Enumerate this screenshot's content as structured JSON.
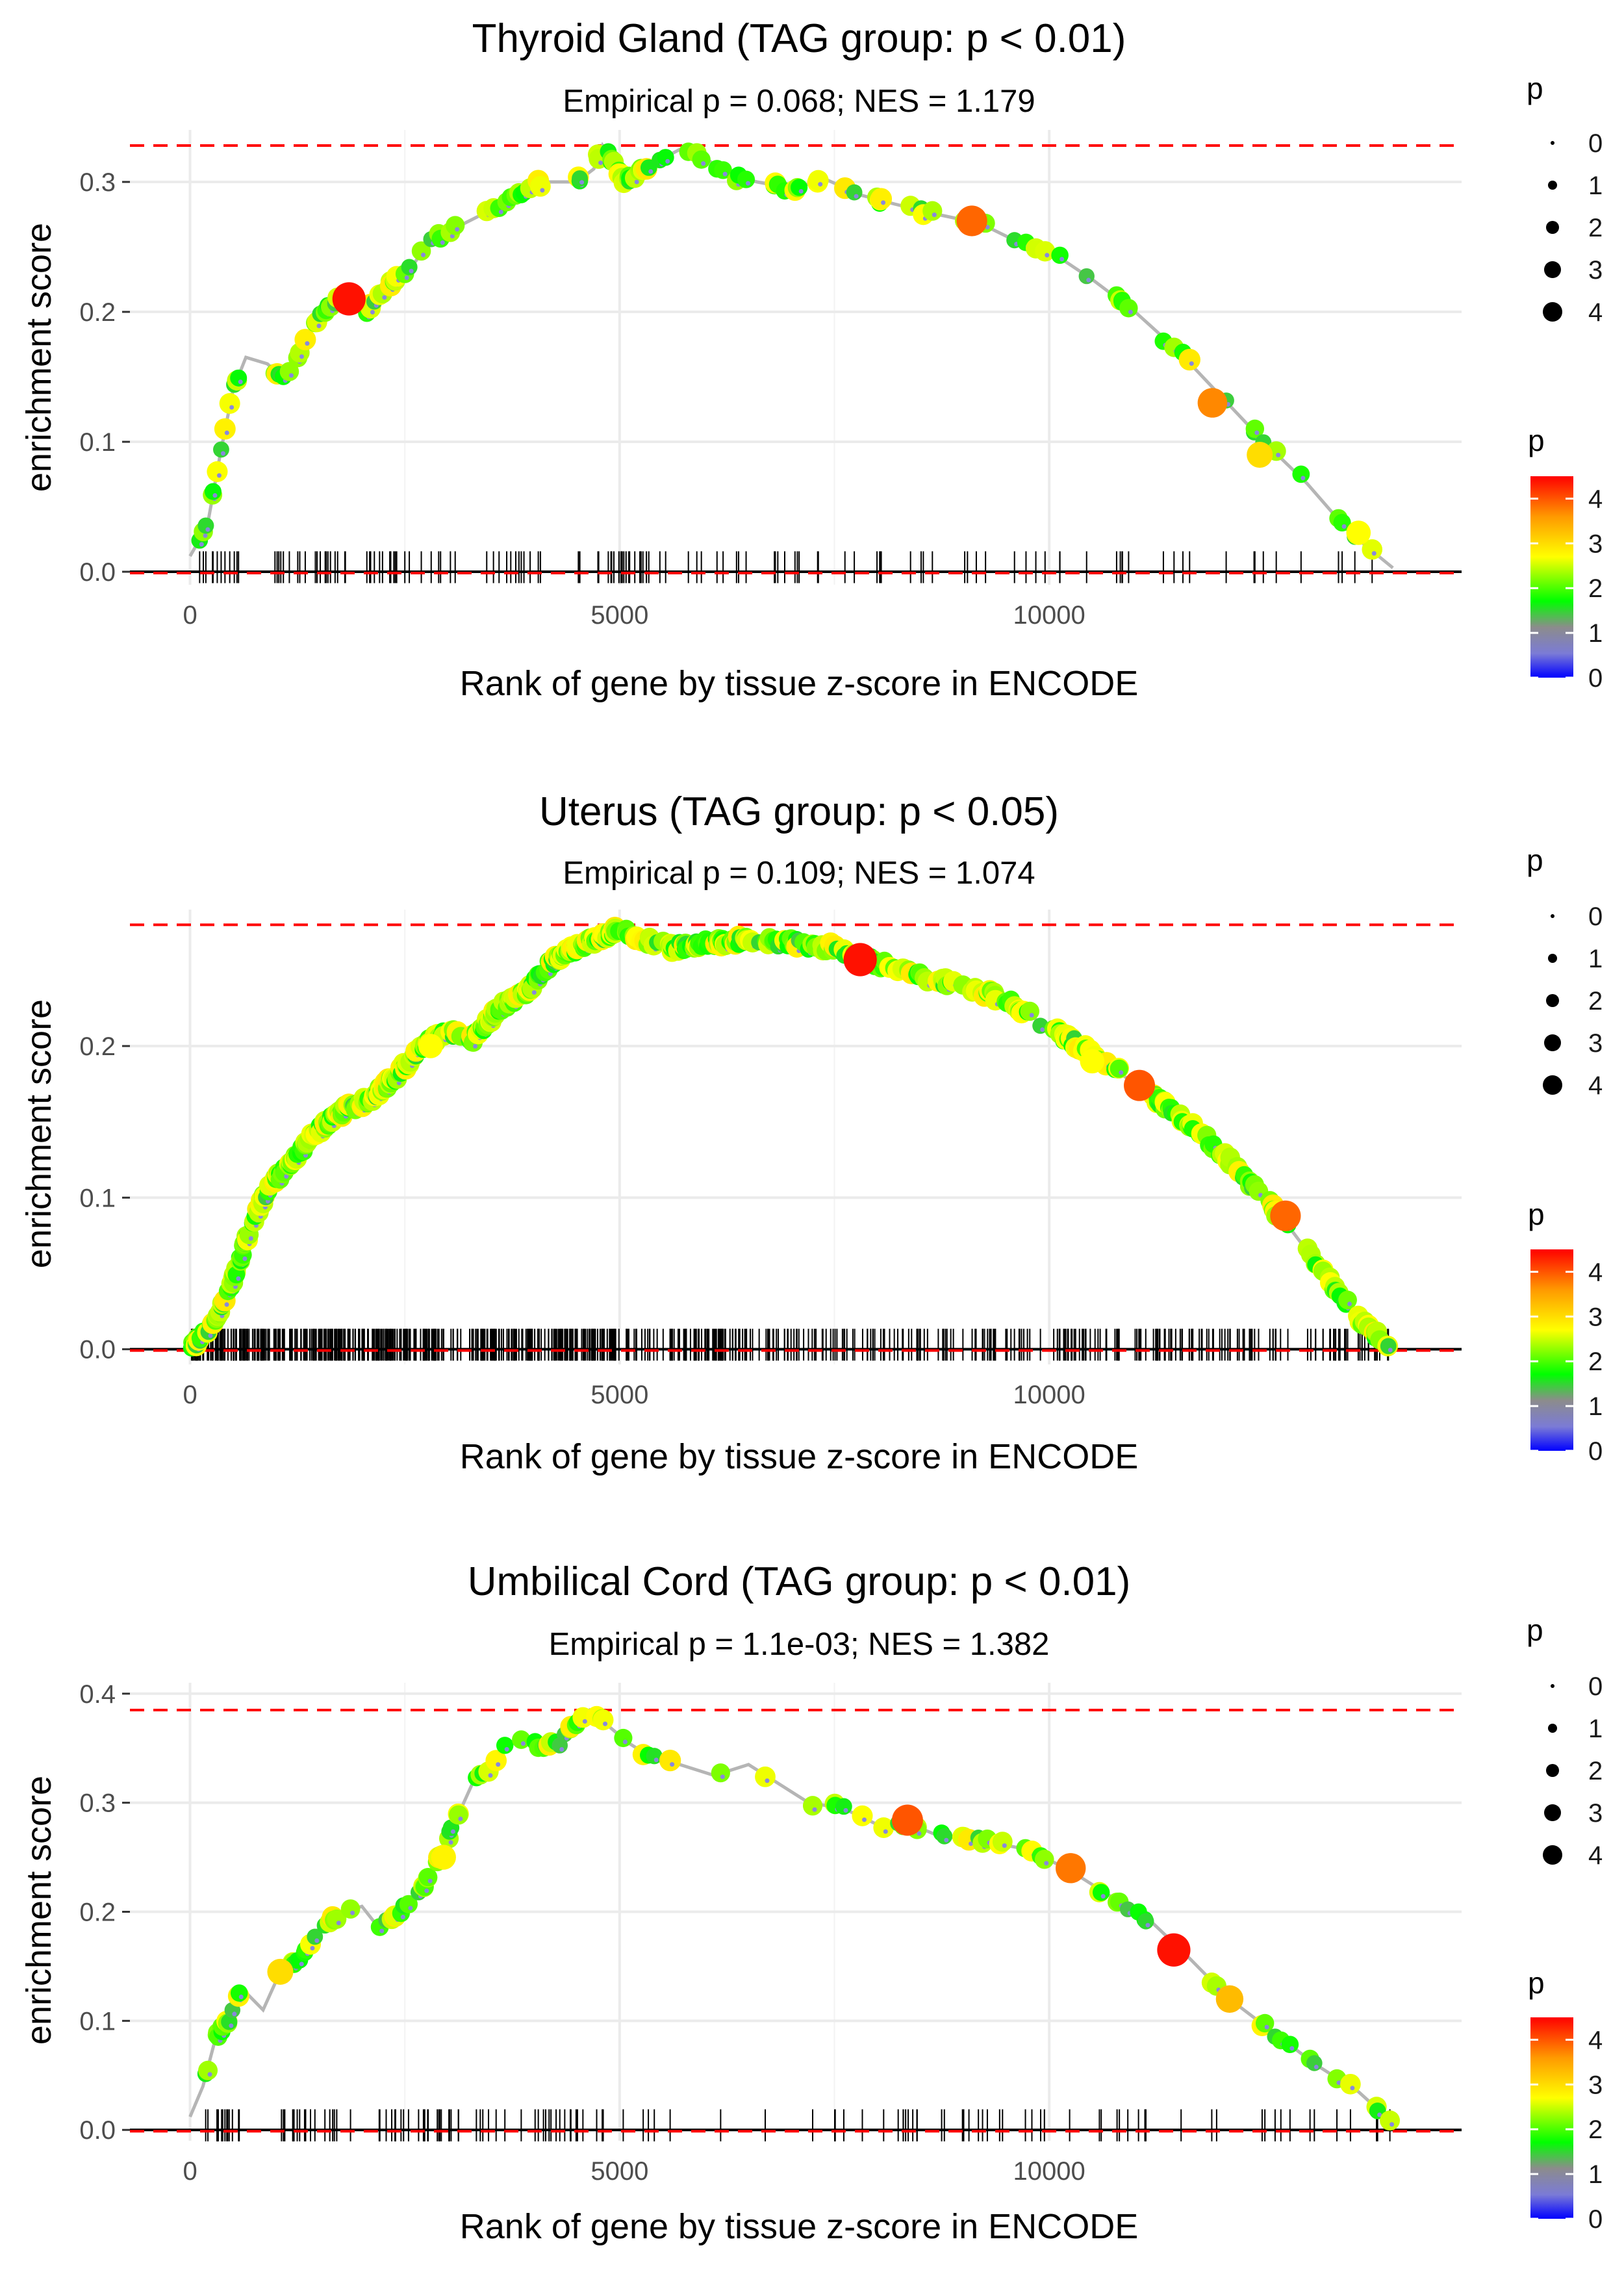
{
  "chart_data": [
    {
      "type": "line",
      "title": "Thyroid Gland (TAG group: p < 0.01)",
      "subtitle": "Empirical p = 0.068; NES = 1.179",
      "xlabel": "Rank of gene by tissue z-score in ENCODE",
      "ylabel": "enrichment score",
      "xlim": [
        -700,
        14800
      ],
      "ylim": [
        -0.01,
        0.34
      ],
      "x_ticks": [
        0,
        5000,
        10000
      ],
      "x_tick_labels": [
        "0",
        "5000",
        "10000"
      ],
      "y_ticks": [
        0.0,
        0.1,
        0.2,
        0.3
      ],
      "y_tick_labels": [
        "0.0",
        "0.1",
        "0.2",
        "0.3"
      ],
      "max_es": 0.328,
      "n_genes": 14000,
      "curve_anchors": [
        [
          0,
          0.012
        ],
        [
          200,
          0.035
        ],
        [
          350,
          0.09
        ],
        [
          500,
          0.14
        ],
        [
          650,
          0.165
        ],
        [
          900,
          0.16
        ],
        [
          1100,
          0.148
        ],
        [
          1400,
          0.185
        ],
        [
          1600,
          0.205
        ],
        [
          1850,
          0.213
        ],
        [
          2050,
          0.2
        ],
        [
          2300,
          0.22
        ],
        [
          2550,
          0.232
        ],
        [
          2800,
          0.255
        ],
        [
          3100,
          0.265
        ],
        [
          3400,
          0.275
        ],
        [
          3700,
          0.285
        ],
        [
          4100,
          0.3
        ],
        [
          4500,
          0.3
        ],
        [
          4700,
          0.31
        ],
        [
          4800,
          0.328
        ],
        [
          5050,
          0.3
        ],
        [
          5300,
          0.31
        ],
        [
          5500,
          0.318
        ],
        [
          5700,
          0.325
        ],
        [
          6000,
          0.318
        ],
        [
          6300,
          0.305
        ],
        [
          6600,
          0.3
        ],
        [
          7000,
          0.295
        ],
        [
          7400,
          0.302
        ],
        [
          7800,
          0.29
        ],
        [
          8200,
          0.283
        ],
        [
          8700,
          0.275
        ],
        [
          9200,
          0.268
        ],
        [
          9600,
          0.255
        ],
        [
          10000,
          0.247
        ],
        [
          10500,
          0.225
        ],
        [
          11000,
          0.2
        ],
        [
          11500,
          0.17
        ],
        [
          12000,
          0.135
        ],
        [
          12500,
          0.1
        ],
        [
          13000,
          0.068
        ],
        [
          13500,
          0.03
        ],
        [
          14000,
          0.003
        ]
      ],
      "hit_count": 150,
      "highlight_points": [
        {
          "x": 1850,
          "y": 0.21,
          "p": 4.4
        },
        {
          "x": 9100,
          "y": 0.27,
          "p": 3.9
        },
        {
          "x": 11900,
          "y": 0.13,
          "p": 3.7
        },
        {
          "x": 12450,
          "y": 0.09,
          "p": 3.0
        },
        {
          "x": 13600,
          "y": 0.03,
          "p": 2.7
        }
      ],
      "size_legend": {
        "title": "p",
        "labels": [
          "0",
          "1",
          "2",
          "3",
          "4"
        ]
      },
      "color_legend": {
        "title": "p",
        "labels": [
          "4",
          "3",
          "2",
          "1",
          "0"
        ],
        "max": 4.5
      }
    },
    {
      "type": "line",
      "title": "Uterus (TAG group: p < 0.05)",
      "subtitle": "Empirical p = 0.109; NES = 1.074",
      "xlabel": "Rank of gene by tissue z-score in ENCODE",
      "ylabel": "enrichment score",
      "xlim": [
        -700,
        14800
      ],
      "ylim": [
        -0.01,
        0.29
      ],
      "x_ticks": [
        0,
        5000,
        10000
      ],
      "x_tick_labels": [
        "0",
        "5000",
        "10000"
      ],
      "y_ticks": [
        0.0,
        0.1,
        0.2
      ],
      "y_tick_labels": [
        "0.0",
        "0.1",
        "0.2"
      ],
      "max_es": 0.28,
      "n_genes": 14000,
      "curve_anchors": [
        [
          0,
          0.0
        ],
        [
          300,
          0.02
        ],
        [
          500,
          0.045
        ],
        [
          700,
          0.08
        ],
        [
          900,
          0.105
        ],
        [
          1200,
          0.125
        ],
        [
          1500,
          0.145
        ],
        [
          1800,
          0.158
        ],
        [
          2100,
          0.165
        ],
        [
          2400,
          0.18
        ],
        [
          2700,
          0.2
        ],
        [
          3000,
          0.21
        ],
        [
          3300,
          0.205
        ],
        [
          3600,
          0.225
        ],
        [
          3900,
          0.235
        ],
        [
          4200,
          0.255
        ],
        [
          4500,
          0.265
        ],
        [
          4800,
          0.272
        ],
        [
          5000,
          0.278
        ],
        [
          5300,
          0.27
        ],
        [
          5600,
          0.265
        ],
        [
          6000,
          0.268
        ],
        [
          6500,
          0.27
        ],
        [
          7000,
          0.268
        ],
        [
          7500,
          0.265
        ],
        [
          7800,
          0.258
        ],
        [
          8200,
          0.252
        ],
        [
          8600,
          0.245
        ],
        [
          9000,
          0.24
        ],
        [
          9500,
          0.23
        ],
        [
          10000,
          0.212
        ],
        [
          10500,
          0.195
        ],
        [
          11000,
          0.175
        ],
        [
          11500,
          0.155
        ],
        [
          12000,
          0.13
        ],
        [
          12500,
          0.1
        ],
        [
          12800,
          0.08
        ],
        [
          13200,
          0.05
        ],
        [
          13600,
          0.02
        ],
        [
          14000,
          0.0
        ]
      ],
      "hit_count": 700,
      "highlight_points": [
        {
          "x": 7800,
          "y": 0.257,
          "p": 4.4
        },
        {
          "x": 11050,
          "y": 0.174,
          "p": 4.0
        },
        {
          "x": 12750,
          "y": 0.088,
          "p": 3.9
        },
        {
          "x": 2800,
          "y": 0.2,
          "p": 2.7
        },
        {
          "x": 10500,
          "y": 0.19,
          "p": 2.7
        }
      ],
      "size_legend": {
        "title": "p",
        "labels": [
          "0",
          "1",
          "2",
          "3",
          "4"
        ]
      },
      "color_legend": {
        "title": "p",
        "labels": [
          "4",
          "3",
          "2",
          "1",
          "0"
        ],
        "max": 4.5
      }
    },
    {
      "type": "line",
      "title": "Umbilical Cord (TAG group: p < 0.01)",
      "subtitle": "Empirical p = 1.1e-03; NES = 1.382",
      "xlabel": "Rank of gene by tissue z-score in ENCODE",
      "ylabel": "enrichment score",
      "xlim": [
        -700,
        14800
      ],
      "ylim": [
        -0.01,
        0.41
      ],
      "x_ticks": [
        0,
        5000,
        10000
      ],
      "x_tick_labels": [
        "0",
        "5000",
        "10000"
      ],
      "y_ticks": [
        0.0,
        0.1,
        0.2,
        0.3,
        0.4
      ],
      "y_tick_labels": [
        "0.0",
        "0.1",
        "0.2",
        "0.3",
        "0.4"
      ],
      "max_es": 0.385,
      "n_genes": 14000,
      "curve_anchors": [
        [
          0,
          0.012
        ],
        [
          150,
          0.04
        ],
        [
          300,
          0.085
        ],
        [
          450,
          0.1
        ],
        [
          600,
          0.13
        ],
        [
          850,
          0.11
        ],
        [
          1050,
          0.145
        ],
        [
          1300,
          0.16
        ],
        [
          1500,
          0.185
        ],
        [
          1800,
          0.2
        ],
        [
          2000,
          0.205
        ],
        [
          2200,
          0.185
        ],
        [
          2450,
          0.2
        ],
        [
          2700,
          0.22
        ],
        [
          2900,
          0.25
        ],
        [
          3100,
          0.285
        ],
        [
          3300,
          0.32
        ],
        [
          3500,
          0.33
        ],
        [
          3700,
          0.355
        ],
        [
          3900,
          0.36
        ],
        [
          4100,
          0.35
        ],
        [
          4300,
          0.355
        ],
        [
          4450,
          0.37
        ],
        [
          4650,
          0.385
        ],
        [
          5100,
          0.355
        ],
        [
          5400,
          0.34
        ],
        [
          5700,
          0.335
        ],
        [
          6100,
          0.325
        ],
        [
          6500,
          0.335
        ],
        [
          7200,
          0.3
        ],
        [
          7600,
          0.295
        ],
        [
          8000,
          0.28
        ],
        [
          8400,
          0.28
        ],
        [
          8700,
          0.27
        ],
        [
          9200,
          0.265
        ],
        [
          9700,
          0.258
        ],
        [
          10200,
          0.24
        ],
        [
          10700,
          0.215
        ],
        [
          11200,
          0.19
        ],
        [
          11600,
          0.16
        ],
        [
          12100,
          0.12
        ],
        [
          12600,
          0.09
        ],
        [
          13100,
          0.06
        ],
        [
          13600,
          0.035
        ],
        [
          13950,
          0.01
        ]
      ],
      "hit_count": 140,
      "highlight_points": [
        {
          "x": 8350,
          "y": 0.284,
          "p": 4.0
        },
        {
          "x": 10250,
          "y": 0.24,
          "p": 3.8
        },
        {
          "x": 11450,
          "y": 0.165,
          "p": 4.4
        },
        {
          "x": 12100,
          "y": 0.12,
          "p": 3.3
        },
        {
          "x": 1050,
          "y": 0.145,
          "p": 3.0
        },
        {
          "x": 2950,
          "y": 0.25,
          "p": 2.8
        }
      ],
      "size_legend": {
        "title": "p",
        "labels": [
          "0",
          "1",
          "2",
          "3",
          "4"
        ]
      },
      "color_legend": {
        "title": "p",
        "labels": [
          "4",
          "3",
          "2",
          "1",
          "0"
        ],
        "max": 4.5
      }
    }
  ]
}
